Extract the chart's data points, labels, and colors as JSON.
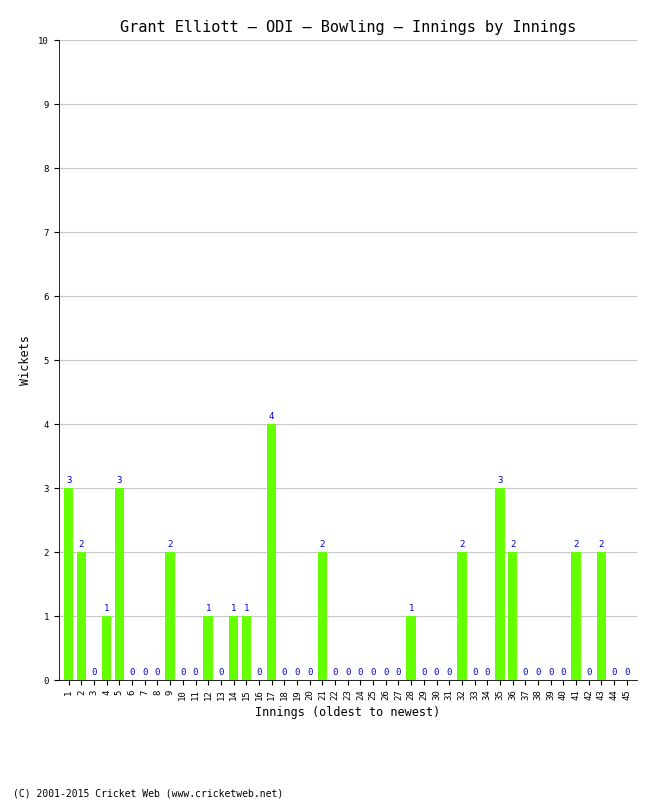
{
  "title": "Grant Elliott – ODI – Bowling – Innings by Innings",
  "xlabel": "Innings (oldest to newest)",
  "ylabel": "Wickets",
  "footnote": "(C) 2001-2015 Cricket Web (www.cricketweb.net)",
  "innings": [
    1,
    2,
    3,
    4,
    5,
    6,
    7,
    8,
    9,
    10,
    11,
    12,
    13,
    14,
    15,
    16,
    17,
    18,
    19,
    20,
    21,
    22,
    23,
    24,
    25,
    26,
    27,
    28,
    29,
    30,
    31,
    32,
    33,
    34,
    35,
    36,
    37,
    38,
    39,
    40,
    41,
    42,
    43,
    44,
    45
  ],
  "wickets": [
    3,
    2,
    0,
    1,
    3,
    0,
    0,
    0,
    2,
    0,
    0,
    1,
    0,
    1,
    1,
    0,
    4,
    0,
    0,
    0,
    2,
    0,
    0,
    0,
    0,
    0,
    0,
    1,
    0,
    0,
    0,
    2,
    0,
    0,
    3,
    2,
    0,
    0,
    0,
    0,
    2,
    0,
    2,
    0,
    0
  ],
  "bar_color": "#66ff00",
  "label_color": "#0000cd",
  "ylim": [
    0,
    10
  ],
  "yticks": [
    0,
    1,
    2,
    3,
    4,
    5,
    6,
    7,
    8,
    9,
    10
  ],
  "bg_color": "#ffffff",
  "grid_color": "#c8c8c8",
  "title_fontsize": 11,
  "axis_fontsize": 8.5,
  "label_fontsize": 6.5,
  "tick_fontsize": 6.5,
  "fig_width": 6.5,
  "fig_height": 8.0,
  "dpi": 100
}
